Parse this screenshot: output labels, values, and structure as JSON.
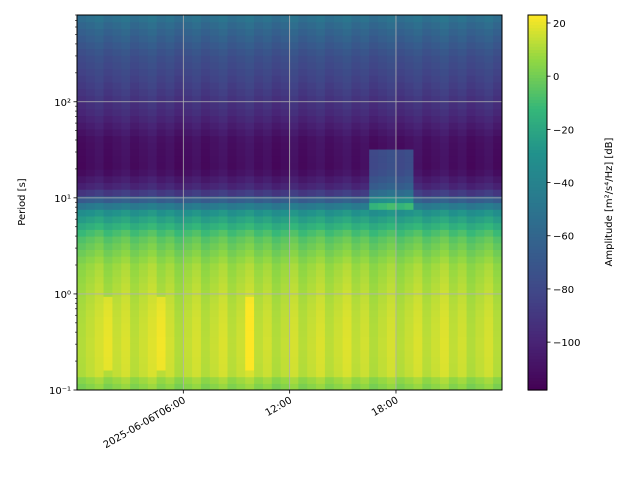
{
  "chart_data": {
    "type": "heatmap",
    "title": "",
    "xlabel": "",
    "ylabel": "Period [s]",
    "x_axis": {
      "type": "time",
      "range": [
        "2025-06-06T00:00",
        "2025-06-06T23:59"
      ],
      "ticks": [
        {
          "time": "2025-06-06T06:00",
          "label": "2025-06-06T06:00"
        },
        {
          "time": "2025-06-06T12:00",
          "label": "12:00"
        },
        {
          "time": "2025-06-06T18:00",
          "label": "18:00"
        }
      ]
    },
    "y_axis": {
      "scale": "log",
      "range": [
        0.1,
        800
      ],
      "ticks": [
        {
          "value": 0.1,
          "label": "10⁻¹"
        },
        {
          "value": 1,
          "label": "10⁰"
        },
        {
          "value": 10,
          "label": "10¹"
        },
        {
          "value": 100,
          "label": "10²"
        }
      ]
    },
    "grid": true,
    "colorbar": {
      "label": "Amplitude [m²/s⁴/Hz] [dB]",
      "colormap": "viridis",
      "range": [
        -118,
        23
      ],
      "ticks": [
        {
          "value": 20,
          "label": "20"
        },
        {
          "value": 0,
          "label": "0"
        },
        {
          "value": -20,
          "label": "−20"
        },
        {
          "value": -40,
          "label": "−40"
        },
        {
          "value": -60,
          "label": "−60"
        },
        {
          "value": -80,
          "label": "−80"
        },
        {
          "value": -100,
          "label": "−100"
        }
      ]
    },
    "period_profile": [
      {
        "period": 0.1,
        "db": 3
      },
      {
        "period": 0.13,
        "db": 8
      },
      {
        "period": 0.15,
        "db": 14
      },
      {
        "period": 0.3,
        "db": 15
      },
      {
        "period": 0.6,
        "db": 14
      },
      {
        "period": 1,
        "db": 12
      },
      {
        "period": 2,
        "db": 8
      },
      {
        "period": 4,
        "db": -5
      },
      {
        "period": 7,
        "db": -28
      },
      {
        "period": 9,
        "db": -55
      },
      {
        "period": 12,
        "db": -95
      },
      {
        "period": 20,
        "db": -112
      },
      {
        "period": 40,
        "db": -110
      },
      {
        "period": 80,
        "db": -95
      },
      {
        "period": 150,
        "db": -85
      },
      {
        "period": 300,
        "db": -75
      },
      {
        "period": 600,
        "db": -58
      },
      {
        "period": 800,
        "db": -50
      }
    ],
    "features": [
      {
        "type": "broadband_burst",
        "time_range": [
          "2025-06-06T01:15",
          "2025-06-06T01:45"
        ],
        "period_range": [
          0.15,
          1
        ],
        "db_offset": 8
      },
      {
        "type": "broadband_burst",
        "time_range": [
          "2025-06-06T04:30",
          "2025-06-06T05:00"
        ],
        "period_range": [
          0.15,
          1
        ],
        "db_offset": 8
      },
      {
        "type": "broadband_burst",
        "time_range": [
          "2025-06-06T09:30",
          "2025-06-06T10:00"
        ],
        "period_range": [
          0.15,
          1
        ],
        "db_offset": 6
      },
      {
        "type": "event",
        "time_range": [
          "2025-06-06T16:30",
          "2025-06-06T19:00"
        ],
        "period_range": [
          8,
          30
        ],
        "db_offset": 35
      }
    ]
  }
}
